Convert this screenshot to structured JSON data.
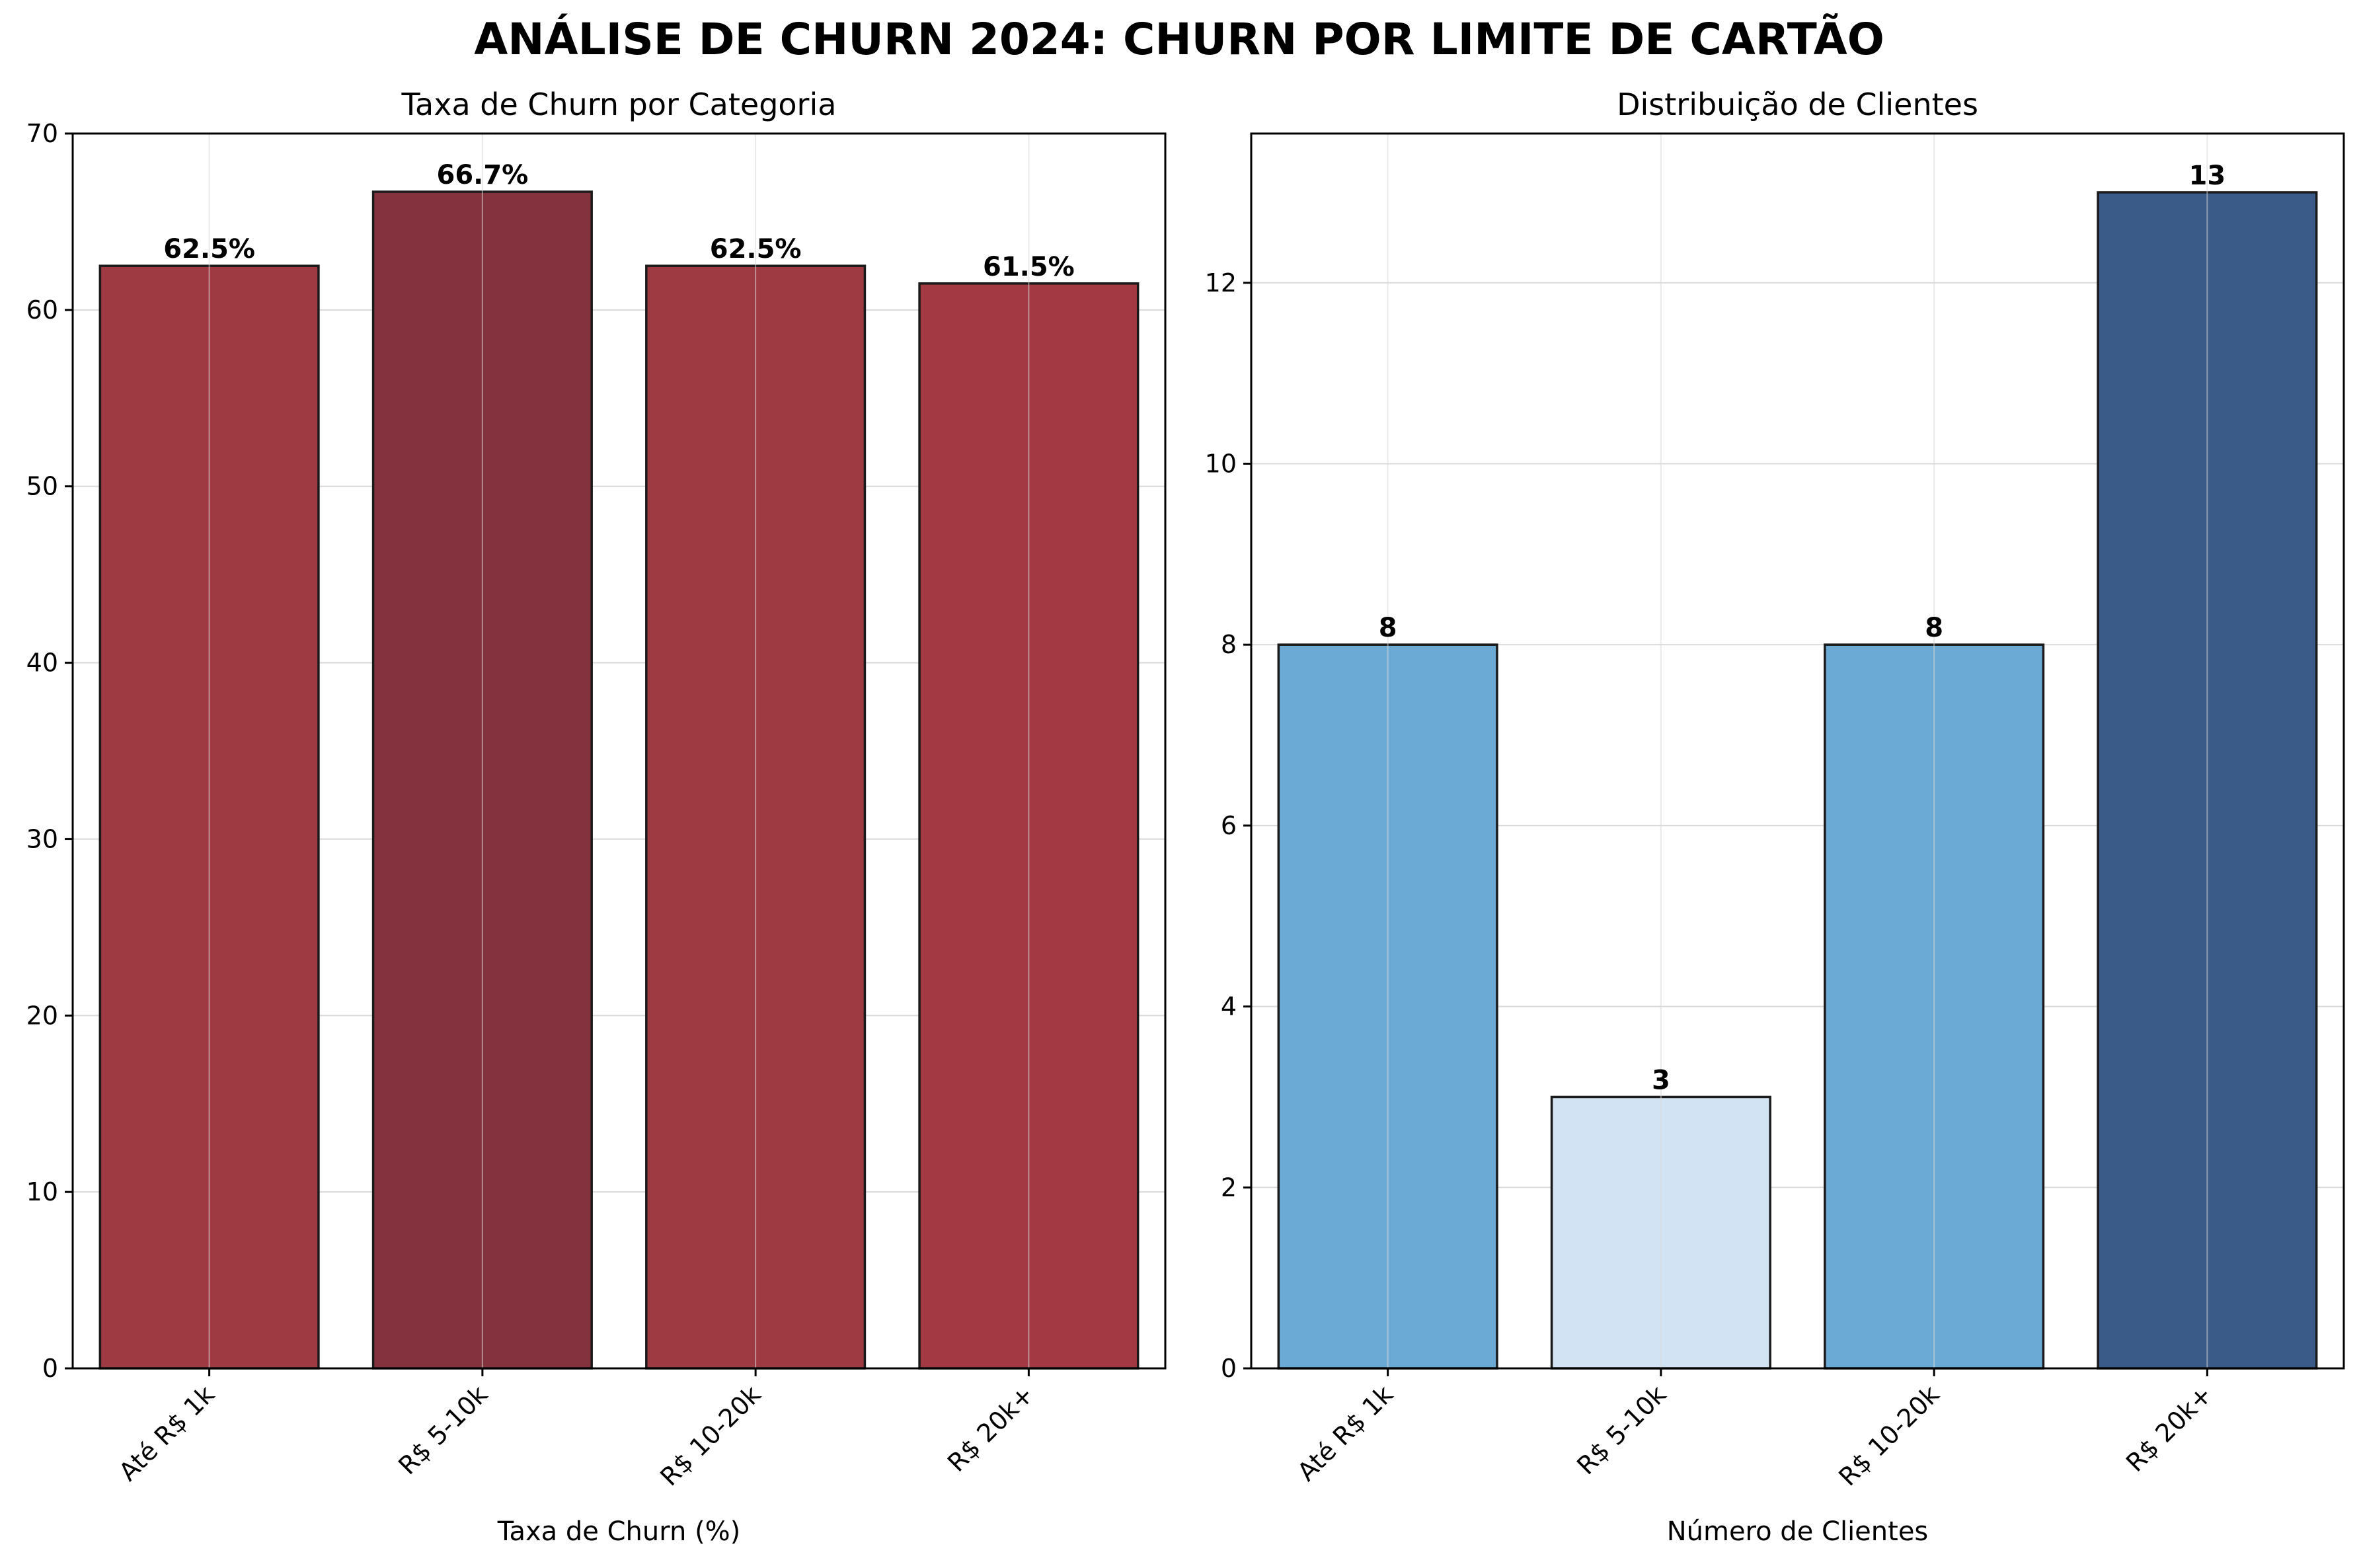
{
  "title": "ANÁLISE DE CHURN 2024: CHURN POR LIMITE DE CARTÃO",
  "chart_data": [
    {
      "type": "bar",
      "title": "Taxa de Churn por Categoria",
      "xlabel": "Taxa de Churn (%)",
      "ylabel": "",
      "categories": [
        "Até R$ 1k",
        "R$ 5-10k",
        "R$ 10-20k",
        "R$ 20k+"
      ],
      "values": [
        62.5,
        66.7,
        62.5,
        61.5
      ],
      "data_labels": [
        "62.5%",
        "66.7%",
        "62.5%",
        "61.5%"
      ],
      "colors": [
        "#9e3a42",
        "#84323d",
        "#9e3a42",
        "#a33a43"
      ],
      "ylim": [
        0,
        70
      ],
      "yticks": [
        0,
        10,
        20,
        30,
        40,
        50,
        60,
        70
      ],
      "grid": true
    },
    {
      "type": "bar",
      "title": "Distribuição de Clientes",
      "xlabel": "Número de Clientes",
      "ylabel": "",
      "categories": [
        "Até R$ 1k",
        "R$ 5-10k",
        "R$ 10-20k",
        "R$ 20k+"
      ],
      "values": [
        8,
        3,
        8,
        13
      ],
      "data_labels": [
        "8",
        "3",
        "8",
        "13"
      ],
      "colors": [
        "#6baad4",
        "#d2e3f3",
        "#6baad4",
        "#3a5a88"
      ],
      "ylim": [
        0,
        13.65
      ],
      "yticks": [
        0,
        2,
        4,
        6,
        8,
        10,
        12
      ],
      "grid": true
    }
  ]
}
